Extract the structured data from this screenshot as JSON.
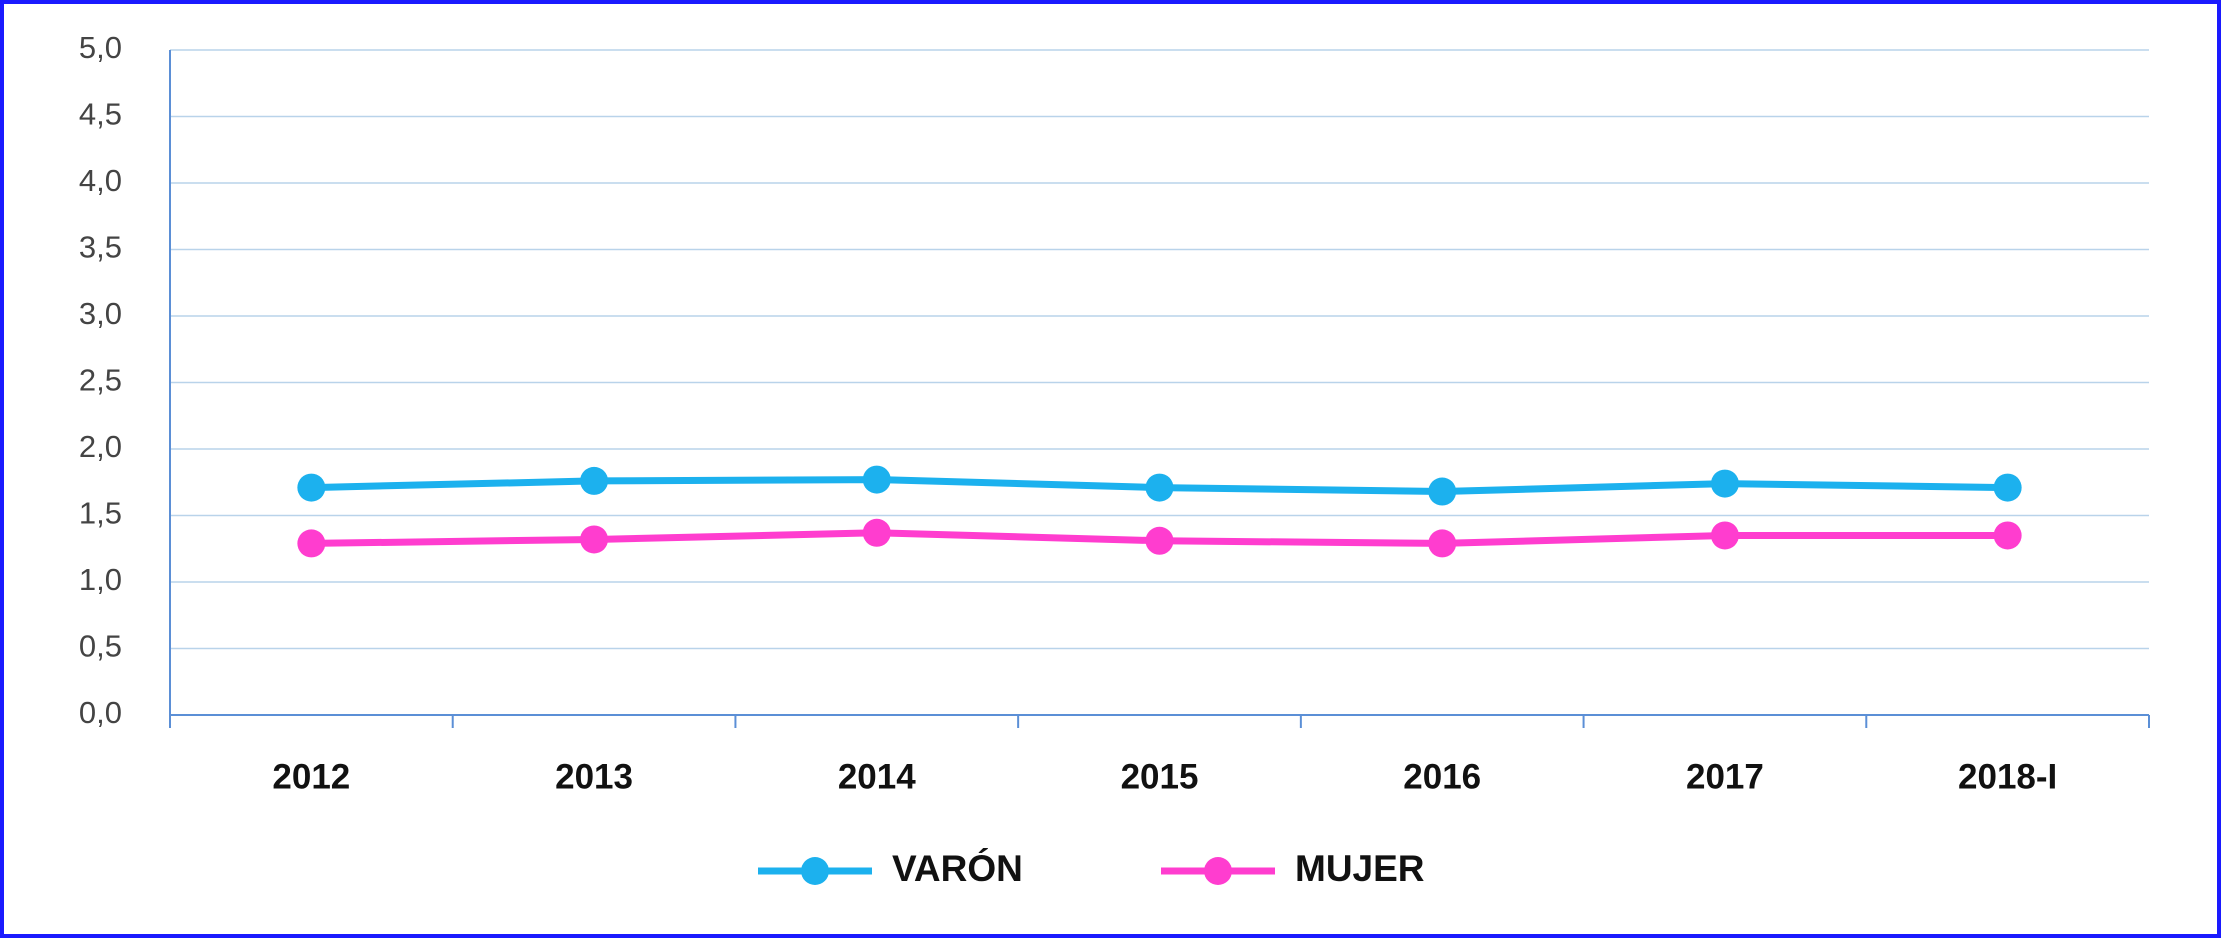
{
  "chart_data": {
    "type": "line",
    "categories": [
      "2012",
      "2013",
      "2014",
      "2015",
      "2016",
      "2017",
      "2018-I"
    ],
    "series": [
      {
        "name": "VARÓN",
        "color": "#1cb1ee",
        "values": [
          1.71,
          1.76,
          1.77,
          1.71,
          1.68,
          1.74,
          1.71
        ]
      },
      {
        "name": "MUJER",
        "color": "#ff3dcf",
        "values": [
          1.29,
          1.32,
          1.37,
          1.31,
          1.29,
          1.35,
          1.35
        ]
      }
    ],
    "ylim": [
      0,
      5
    ],
    "yticks": [
      {
        "value": 0,
        "label": "0,0"
      },
      {
        "value": 0.5,
        "label": "0,5"
      },
      {
        "value": 1,
        "label": "1,0"
      },
      {
        "value": 1.5,
        "label": "1,5"
      },
      {
        "value": 2,
        "label": "2,0"
      },
      {
        "value": 2.5,
        "label": "2,5"
      },
      {
        "value": 3,
        "label": "3,0"
      },
      {
        "value": 3.5,
        "label": "3,5"
      },
      {
        "value": 4,
        "label": "4,0"
      },
      {
        "value": 4.5,
        "label": "4,5"
      },
      {
        "value": 5,
        "label": "5,0"
      }
    ],
    "grid": true,
    "legend": "bottom"
  }
}
